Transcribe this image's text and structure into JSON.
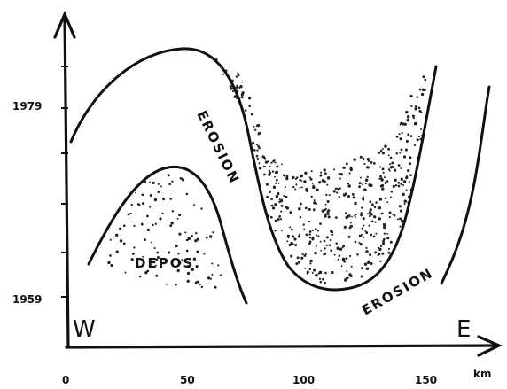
{
  "figure": {
    "x_axis": {
      "unit": "km",
      "tick_labels": [
        "0",
        "50",
        "100",
        "150"
      ]
    },
    "y_axis": {
      "tick_labels": [
        "1979",
        "1959"
      ]
    },
    "side_labels": {
      "west": "W",
      "east": "E"
    },
    "annotations": {
      "erosion_upper": "EROSION",
      "erosion_lower": "EROSION",
      "deposition": "DEPOS."
    },
    "colors": {
      "ink": "#111111",
      "background": "#ffffff"
    }
  }
}
